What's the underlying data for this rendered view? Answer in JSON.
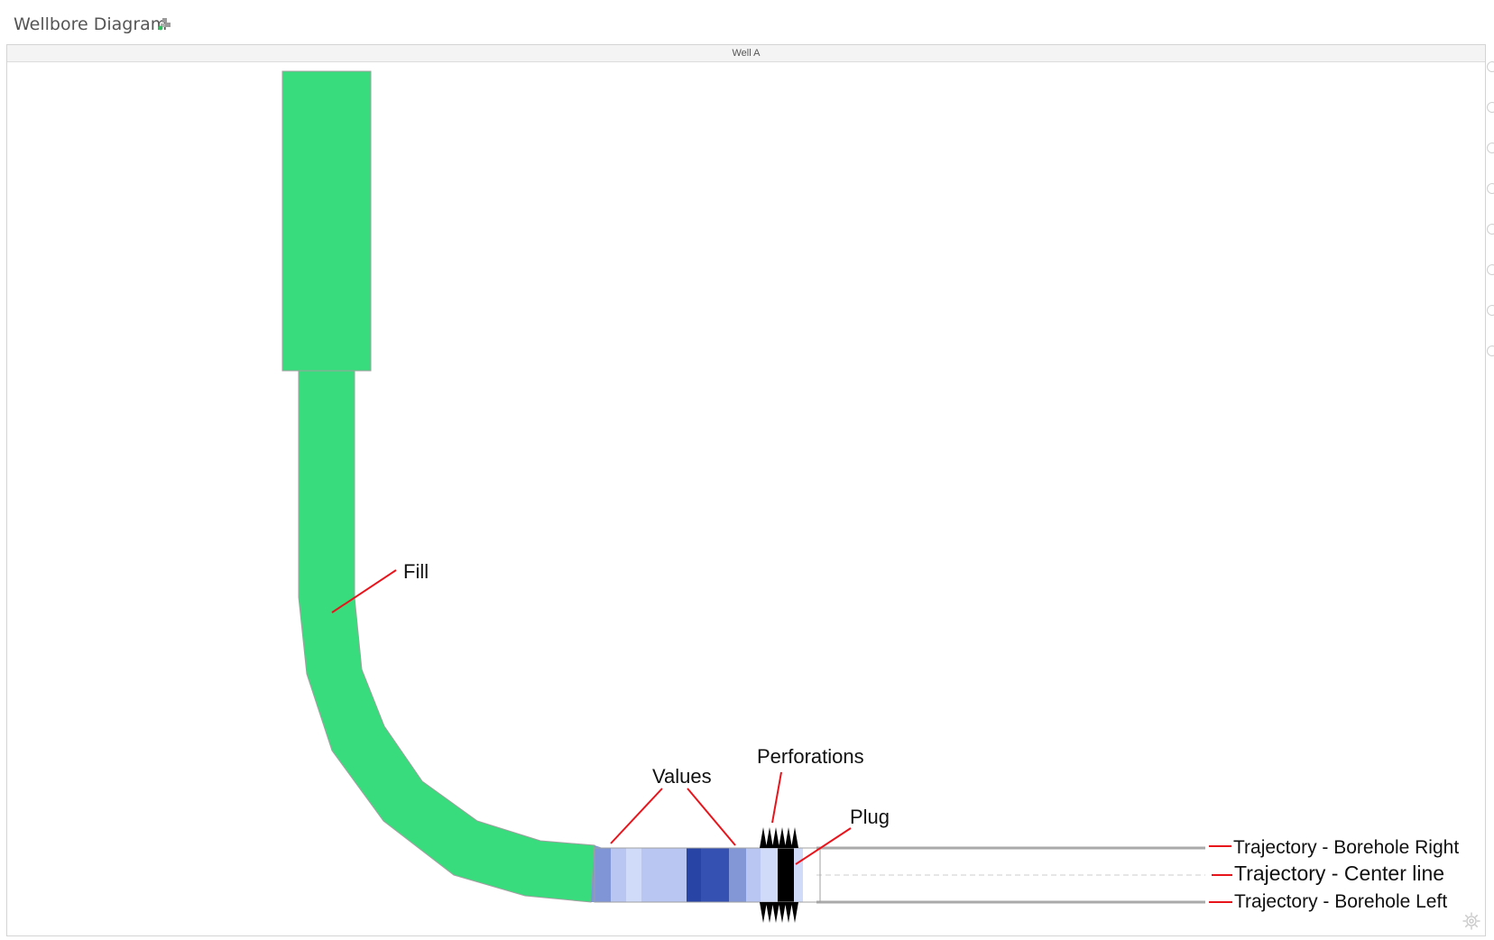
{
  "app": {
    "title": "Wellbore Diagram",
    "icon": "puzzle-icon"
  },
  "panel": {
    "title": "Well A"
  },
  "colors": {
    "fill": "#38dc7c",
    "fill_stroke": "#a0a0a0",
    "annotation": "#e8141c",
    "perforation": "#000000",
    "trajectory": "#aaaaaa",
    "centerline": "#d8d8d8"
  },
  "value_segments": [
    {
      "color": "#7f95d6"
    },
    {
      "color": "#b9c6f1"
    },
    {
      "color": "#d0dbfa"
    },
    {
      "color": "#b9c6f1"
    },
    {
      "color": "#2844a4"
    },
    {
      "color": "#3552b3"
    },
    {
      "color": "#8397d6"
    },
    {
      "color": "#b9c6f1"
    },
    {
      "color": "#d0dbfa"
    },
    {
      "color": "#000000"
    },
    {
      "color": "#d0dbfa"
    }
  ],
  "annotations": {
    "fill": "Fill",
    "values": "Values",
    "perforations": "Perforations",
    "plug": "Plug",
    "borehole_right": "Trajectory - Borehole Right",
    "center_line": "Trajectory - Center line",
    "borehole_left": "Trajectory - Borehole Left"
  },
  "controls": {
    "settings_icon": "gear-icon",
    "side_indicator_count": 8
  }
}
